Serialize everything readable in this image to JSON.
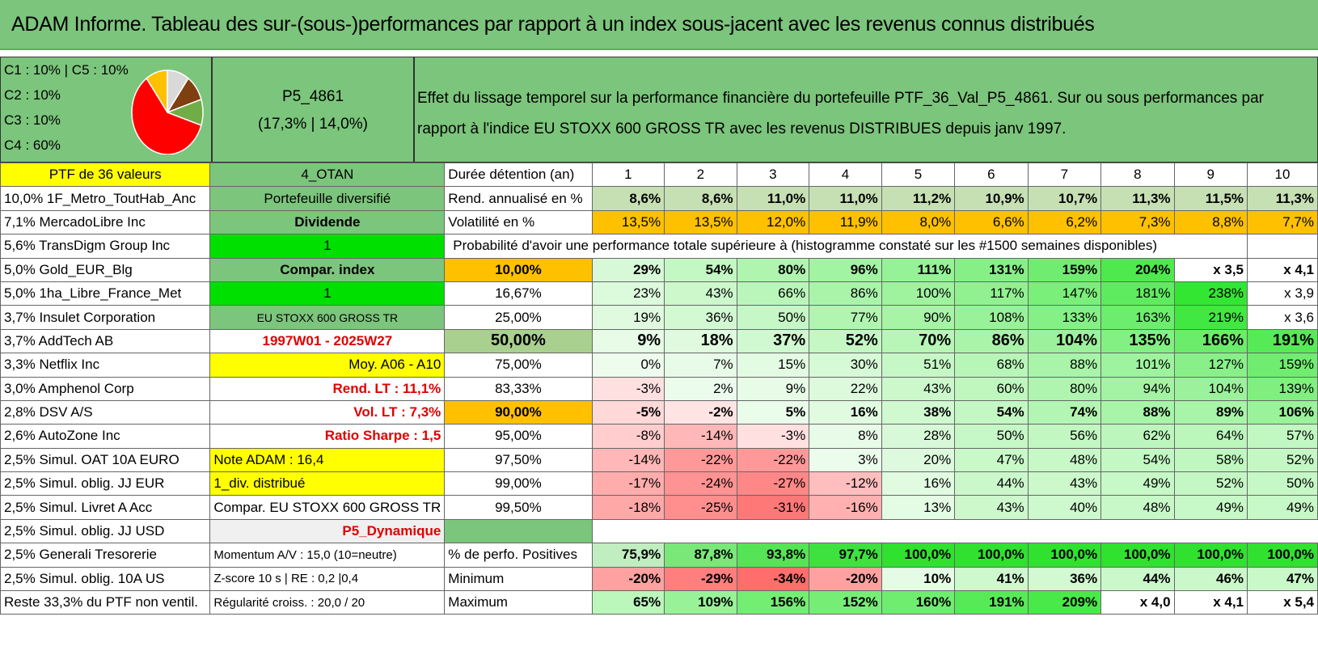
{
  "title": "ADAM Informe. Tableau des sur-(sous-)performances par rapport à un index sous-jacent avec les revenus connus distribués",
  "legend": {
    "lines": [
      "C1 : 10% | C5 : 10%",
      "C2 : 10%",
      "C3 : 10%",
      "C4 : 60%"
    ],
    "pie": [
      {
        "label": "C1",
        "value": 10,
        "color": "#ffc000"
      },
      {
        "label": "C2",
        "value": 10,
        "color": "#d9d9d9"
      },
      {
        "label": "C3",
        "value": 10,
        "color": "#7f3f10"
      },
      {
        "label": "C5",
        "value": 10,
        "color": "#70ad47"
      },
      {
        "label": "C4",
        "value": 60,
        "color": "#ff0000"
      }
    ]
  },
  "portfolio": {
    "id": "P5_4861",
    "perf": "(17,3% | 14,0%)"
  },
  "description": "Effet du lissage temporel sur la performance financière du portefeuille PTF_36_Val_P5_4861. Sur ou sous performances par rapport à l'indice EU STOXX 600 GROSS TR avec les revenus DISTRIBUES depuis janv 1997.",
  "header": {
    "ptf": "PTF de 36 valeurs",
    "code": "4_OTAN",
    "duration_label": "Durée détention (an)",
    "years": [
      "1",
      "2",
      "3",
      "4",
      "5",
      "6",
      "7",
      "8",
      "9",
      "10"
    ]
  },
  "holdings": [
    "10,0% 1F_Metro_ToutHab_Anc",
    "7,1% MercadoLibre Inc",
    "5,6% TransDigm Group Inc",
    "5,0% Gold_EUR_Blg",
    "5,0% 1ha_Libre_France_Met",
    "3,7% Insulet Corporation",
    "3,7% AddTech AB",
    "3,3% Netflix Inc",
    "3,0% Amphenol Corp",
    "2,8% DSV A/S",
    "2,6% AutoZone Inc",
    "2,5% Simul. OAT 10A EURO",
    "2,5% Simul. oblig. JJ EUR",
    "2,5% Simul. Livret A Acc",
    "2,5% Simul. oblig. JJ USD",
    "2,5% Generali Tresorerie",
    "2,5% Simul. oblig. 10A US",
    "Reste 33,3% du PTF non ventil."
  ],
  "info": [
    "Portefeuille diversifié",
    "Dividende",
    "1",
    "Compar. index",
    "1",
    "EU STOXX 600 GROSS TR",
    "1997W01 - 2025W27",
    "Moy. A06 - A10",
    "Rend. LT : 11,1%",
    "Vol. LT : 7,3%",
    "Ratio Sharpe : 1,5",
    "Note ADAM : 16,4",
    "1_div. distribué",
    "Compar. EU STOXX 600 GROSS TR",
    "P5_Dynamique",
    "Momentum A/V : 15,0 (10=neutre)",
    "Z-score 10 s | RE : 0,2 |0,4",
    "Régularité croiss. : 20,0 / 20"
  ],
  "rend": {
    "label": "Rend. annualisé en %",
    "values": [
      "8,6%",
      "8,6%",
      "11,0%",
      "11,0%",
      "11,2%",
      "10,9%",
      "10,7%",
      "11,3%",
      "11,5%",
      "11,3%"
    ]
  },
  "vol": {
    "label": "Volatilité en %",
    "values": [
      "13,5%",
      "13,5%",
      "12,0%",
      "11,9%",
      "8,0%",
      "6,6%",
      "6,2%",
      "7,3%",
      "8,8%",
      "7,7%"
    ]
  },
  "prob_title": "Probabilité d'avoir une performance totale supérieure à (histogramme constaté sur les #1500 semaines disponibles)",
  "prob": [
    {
      "p": "10,00%",
      "v": [
        "29%",
        "54%",
        "80%",
        "96%",
        "111%",
        "131%",
        "159%",
        "204%",
        "x 3,5",
        "x 4,1"
      ]
    },
    {
      "p": "16,67%",
      "v": [
        "23%",
        "43%",
        "66%",
        "86%",
        "100%",
        "117%",
        "147%",
        "181%",
        "238%",
        "x 3,9"
      ]
    },
    {
      "p": "25,00%",
      "v": [
        "19%",
        "36%",
        "50%",
        "77%",
        "90%",
        "108%",
        "133%",
        "163%",
        "219%",
        "x 3,6"
      ]
    },
    {
      "p": "50,00%",
      "v": [
        "9%",
        "18%",
        "37%",
        "52%",
        "70%",
        "86%",
        "104%",
        "135%",
        "166%",
        "191%"
      ]
    },
    {
      "p": "75,00%",
      "v": [
        "0%",
        "7%",
        "15%",
        "30%",
        "51%",
        "68%",
        "88%",
        "101%",
        "127%",
        "159%"
      ]
    },
    {
      "p": "83,33%",
      "v": [
        "-3%",
        "2%",
        "9%",
        "22%",
        "43%",
        "60%",
        "80%",
        "94%",
        "104%",
        "139%"
      ]
    },
    {
      "p": "90,00%",
      "v": [
        "-5%",
        "-2%",
        "5%",
        "16%",
        "38%",
        "54%",
        "74%",
        "88%",
        "89%",
        "106%"
      ]
    },
    {
      "p": "95,00%",
      "v": [
        "-8%",
        "-14%",
        "-3%",
        "8%",
        "28%",
        "50%",
        "56%",
        "62%",
        "64%",
        "57%"
      ]
    },
    {
      "p": "97,50%",
      "v": [
        "-14%",
        "-22%",
        "-22%",
        "3%",
        "20%",
        "47%",
        "48%",
        "54%",
        "58%",
        "52%"
      ]
    },
    {
      "p": "99,00%",
      "v": [
        "-17%",
        "-24%",
        "-27%",
        "-12%",
        "16%",
        "44%",
        "43%",
        "49%",
        "52%",
        "50%"
      ]
    },
    {
      "p": "99,50%",
      "v": [
        "-18%",
        "-25%",
        "-31%",
        "-16%",
        "13%",
        "43%",
        "40%",
        "48%",
        "49%",
        "49%"
      ]
    }
  ],
  "stats": [
    {
      "label": "% de perfo. Positives",
      "v": [
        "75,9%",
        "87,8%",
        "93,8%",
        "97,7%",
        "100,0%",
        "100,0%",
        "100,0%",
        "100,0%",
        "100,0%",
        "100,0%"
      ]
    },
    {
      "label": "Minimum",
      "v": [
        "-20%",
        "-29%",
        "-34%",
        "-20%",
        "10%",
        "41%",
        "36%",
        "44%",
        "46%",
        "47%"
      ]
    },
    {
      "label": "Maximum",
      "v": [
        "65%",
        "109%",
        "156%",
        "152%",
        "160%",
        "191%",
        "209%",
        "x 4,0",
        "x 4,1",
        "x 5,4"
      ]
    }
  ],
  "colors": {
    "header_green": "#7cc57c",
    "yellow": "#ffff00",
    "orange": "#ffc000",
    "bright_green": "#00e000"
  }
}
